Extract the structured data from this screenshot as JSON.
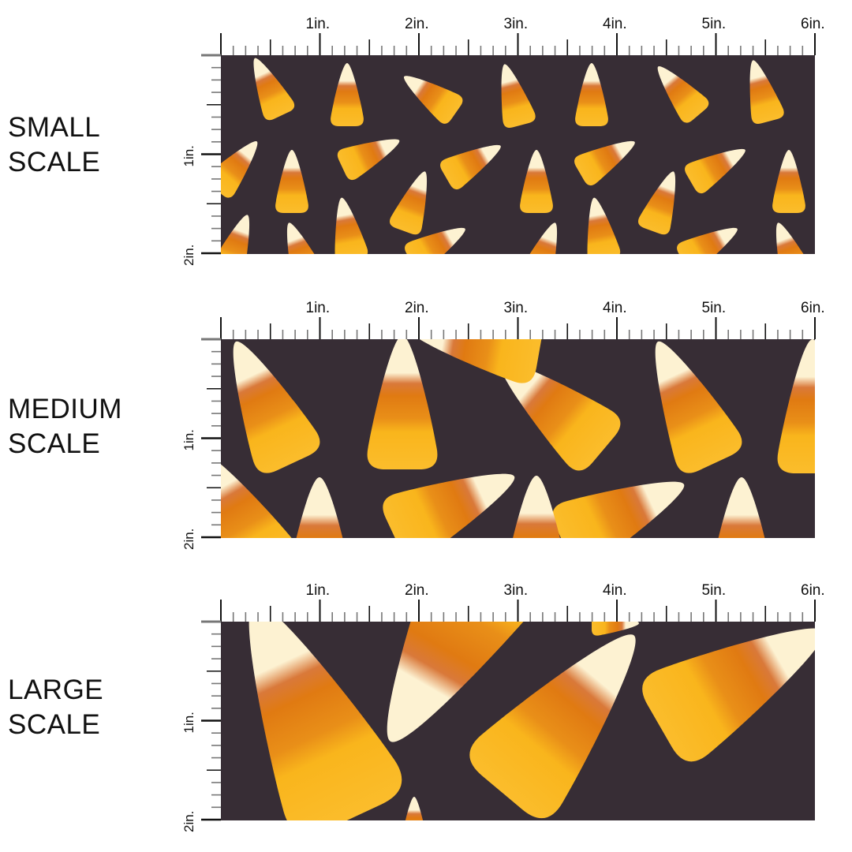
{
  "panels": [
    {
      "id": "small",
      "label_line1": "SMALL",
      "label_line2": "SCALE"
    },
    {
      "id": "medium",
      "label_line1": "MEDIUM",
      "label_line2": "SCALE"
    },
    {
      "id": "large",
      "label_line1": "LARGE",
      "label_line2": "SCALE"
    }
  ],
  "ruler": {
    "horizontal_labels": [
      "1in.",
      "2in.",
      "3in.",
      "4in.",
      "5in.",
      "6in."
    ],
    "vertical_labels": [
      "1in.",
      "2in."
    ]
  },
  "colors": {
    "background": "#372d35",
    "cream": "#fdf2d2",
    "orange": "#e07a12",
    "yellow": "#f9b51c",
    "ruler": "#111111"
  }
}
